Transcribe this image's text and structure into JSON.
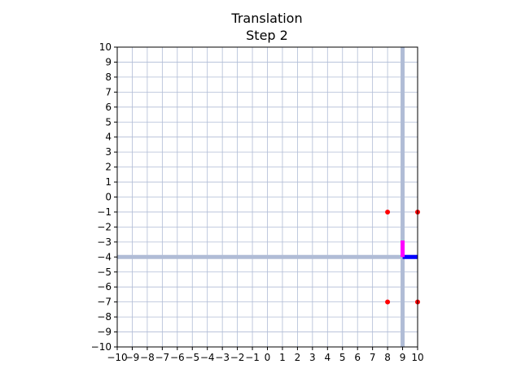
{
  "chart_data": {
    "type": "scatter",
    "title": "Translation",
    "subtitle": "Step 2",
    "xlabel": "",
    "ylabel": "",
    "xlim": [
      -10,
      10
    ],
    "ylim": [
      -10,
      10
    ],
    "xticks": [
      -10,
      -9,
      -8,
      -7,
      -6,
      -5,
      -4,
      -3,
      -2,
      -1,
      0,
      1,
      2,
      3,
      4,
      5,
      6,
      7,
      8,
      9,
      10
    ],
    "yticks": [
      -10,
      -9,
      -8,
      -7,
      -6,
      -5,
      -4,
      -3,
      -2,
      -1,
      0,
      1,
      2,
      3,
      4,
      5,
      6,
      7,
      8,
      9,
      10
    ],
    "grid": true,
    "highlight_lines": {
      "x": 9,
      "y": -4,
      "color": "#b0bcd6"
    },
    "points": [
      {
        "x": 8,
        "y": -1
      },
      {
        "x": 10,
        "y": -1
      },
      {
        "x": 8,
        "y": -7
      },
      {
        "x": 10,
        "y": -7
      }
    ],
    "point_color": "#ff0000",
    "vectors": [
      {
        "x1": 9,
        "y1": -4,
        "x2": 10,
        "y2": -4,
        "color": "#0000ff"
      },
      {
        "x1": 9,
        "y1": -4,
        "x2": 9,
        "y2": -2.9,
        "color": "#ff00ff"
      }
    ]
  }
}
